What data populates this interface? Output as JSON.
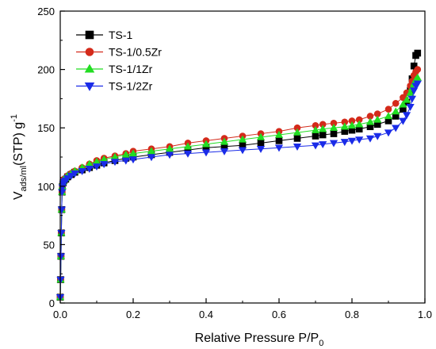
{
  "chart_data": {
    "type": "line",
    "title": "",
    "xlabel": {
      "main": "Relative Pressure P/P",
      "sub": "0"
    },
    "ylabel": {
      "pre": "V",
      "sub": "ads/ml",
      "post": "(STP) g",
      "sup": "-1"
    },
    "xlim": [
      0.0,
      1.0
    ],
    "ylim": [
      0,
      250
    ],
    "xticks": [
      "0.0",
      "0.2",
      "0.4",
      "0.6",
      "0.8",
      "1.0"
    ],
    "yticks": [
      "0",
      "50",
      "100",
      "150",
      "200",
      "250"
    ],
    "grid": false,
    "legend_position": "top-left",
    "series": [
      {
        "name": "TS-1",
        "color": "#000000",
        "marker": "square",
        "x": [
          0.0,
          0.001,
          0.002,
          0.003,
          0.004,
          0.005,
          0.006,
          0.008,
          0.01,
          0.015,
          0.02,
          0.03,
          0.04,
          0.06,
          0.08,
          0.1,
          0.12,
          0.15,
          0.18,
          0.2,
          0.25,
          0.3,
          0.35,
          0.4,
          0.45,
          0.5,
          0.55,
          0.6,
          0.65,
          0.7,
          0.72,
          0.75,
          0.78,
          0.8,
          0.82,
          0.85,
          0.87,
          0.9,
          0.92,
          0.94,
          0.95,
          0.96,
          0.965,
          0.97,
          0.975,
          0.98
        ],
        "y": [
          5,
          20,
          40,
          60,
          80,
          95,
          100,
          103,
          105,
          106,
          108,
          110,
          112,
          114,
          116,
          118,
          120,
          122,
          124,
          125,
          127,
          129,
          131,
          133,
          134,
          135,
          137,
          139,
          141,
          143,
          144,
          145,
          147,
          148,
          149,
          151,
          153,
          156,
          160,
          166,
          172,
          182,
          192,
          203,
          212,
          214
        ]
      },
      {
        "name": "TS-1/0.5Zr",
        "color": "#d42a1a",
        "marker": "circle",
        "x": [
          0.0,
          0.001,
          0.002,
          0.003,
          0.004,
          0.005,
          0.006,
          0.008,
          0.01,
          0.015,
          0.02,
          0.03,
          0.04,
          0.06,
          0.08,
          0.1,
          0.12,
          0.15,
          0.18,
          0.2,
          0.25,
          0.3,
          0.35,
          0.4,
          0.45,
          0.5,
          0.55,
          0.6,
          0.65,
          0.7,
          0.72,
          0.75,
          0.78,
          0.8,
          0.82,
          0.85,
          0.87,
          0.9,
          0.92,
          0.94,
          0.95,
          0.96,
          0.965,
          0.97,
          0.975,
          0.98
        ],
        "y": [
          5,
          20,
          40,
          60,
          80,
          95,
          100,
          104,
          106,
          107,
          109,
          111,
          113,
          116,
          119,
          122,
          124,
          126,
          128,
          130,
          132,
          134,
          137,
          139,
          141,
          143,
          145,
          147,
          150,
          152,
          153,
          154,
          155,
          156,
          157,
          160,
          162,
          166,
          171,
          176,
          180,
          186,
          190,
          195,
          198,
          200
        ]
      },
      {
        "name": "TS-1/1Zr",
        "color": "#22dd22",
        "marker": "triangle-up",
        "x": [
          0.0,
          0.001,
          0.002,
          0.003,
          0.004,
          0.005,
          0.006,
          0.008,
          0.01,
          0.015,
          0.02,
          0.03,
          0.04,
          0.06,
          0.08,
          0.1,
          0.12,
          0.15,
          0.18,
          0.2,
          0.25,
          0.3,
          0.35,
          0.4,
          0.45,
          0.5,
          0.55,
          0.6,
          0.65,
          0.7,
          0.72,
          0.75,
          0.78,
          0.8,
          0.82,
          0.85,
          0.87,
          0.9,
          0.92,
          0.94,
          0.95,
          0.96,
          0.965,
          0.97,
          0.975,
          0.98
        ],
        "y": [
          5,
          20,
          40,
          60,
          80,
          95,
          100,
          104,
          106,
          107,
          109,
          111,
          113,
          116,
          119,
          121,
          123,
          125,
          127,
          128,
          130,
          132,
          134,
          136,
          138,
          140,
          142,
          144,
          146,
          148,
          149,
          150,
          151,
          152,
          153,
          155,
          157,
          160,
          164,
          170,
          174,
          180,
          184,
          188,
          191,
          193
        ]
      },
      {
        "name": "TS-1/2Zr",
        "color": "#1a2be8",
        "marker": "triangle-down",
        "x": [
          0.0,
          0.001,
          0.002,
          0.003,
          0.004,
          0.005,
          0.006,
          0.008,
          0.01,
          0.015,
          0.02,
          0.03,
          0.04,
          0.06,
          0.08,
          0.1,
          0.12,
          0.15,
          0.18,
          0.2,
          0.25,
          0.3,
          0.35,
          0.4,
          0.45,
          0.5,
          0.55,
          0.6,
          0.65,
          0.7,
          0.72,
          0.75,
          0.78,
          0.8,
          0.82,
          0.85,
          0.87,
          0.9,
          0.92,
          0.94,
          0.95,
          0.96,
          0.965,
          0.97,
          0.975,
          0.98
        ],
        "y": [
          5,
          20,
          40,
          60,
          80,
          95,
          99,
          102,
          104,
          105,
          107,
          109,
          111,
          113,
          115,
          117,
          119,
          121,
          122,
          123,
          125,
          127,
          128,
          129,
          130,
          131,
          132,
          133,
          134,
          135,
          136,
          137,
          138,
          139,
          140,
          141,
          143,
          146,
          150,
          156,
          161,
          168,
          175,
          182,
          186,
          188
        ]
      }
    ]
  }
}
